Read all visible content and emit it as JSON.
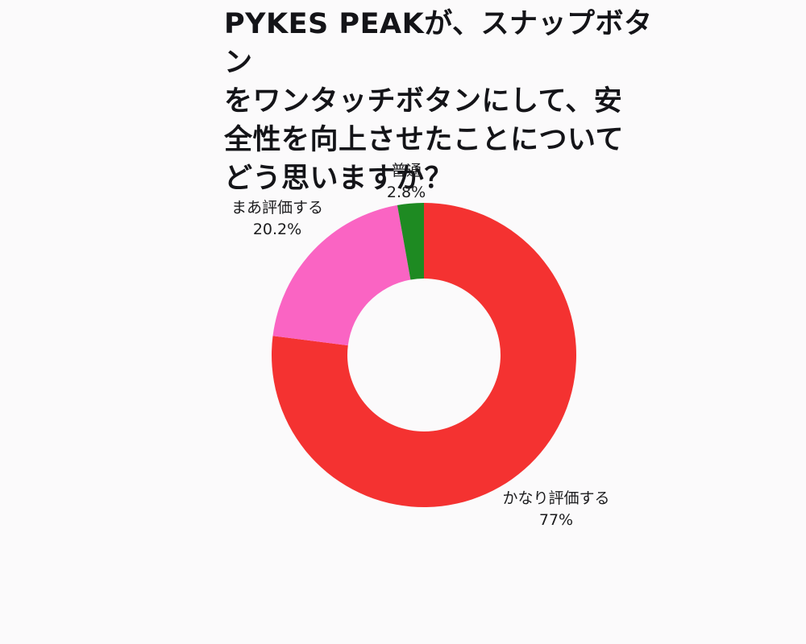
{
  "page": {
    "background": "#fbfafb"
  },
  "chart_data": {
    "type": "pie",
    "subtype": "donut",
    "title": "PYKES PEAKが、スナップボタンをワンタッチボタンにして、安全性を向上させたことについてどう思いますか？",
    "title_lines": [
      "PYKES PEAKが、スナップボタン",
      "をワンタッチボタンにして、安",
      "全性を向上させたことについて",
      "どう思いますか？"
    ],
    "categories": [
      "かなり評価する",
      "まあ評価する",
      "普通"
    ],
    "values": [
      77,
      20.2,
      2.8
    ],
    "value_labels": [
      "77%",
      "20.2%",
      "2.8%"
    ],
    "colors": [
      "#f43231",
      "#fa64c3",
      "#1e8a22"
    ],
    "start_angle_deg": 0,
    "direction": "clockwise",
    "inner_radius_ratio": 0.5,
    "legend": "none",
    "labels_position": "outside",
    "background": "#fbfafb"
  }
}
